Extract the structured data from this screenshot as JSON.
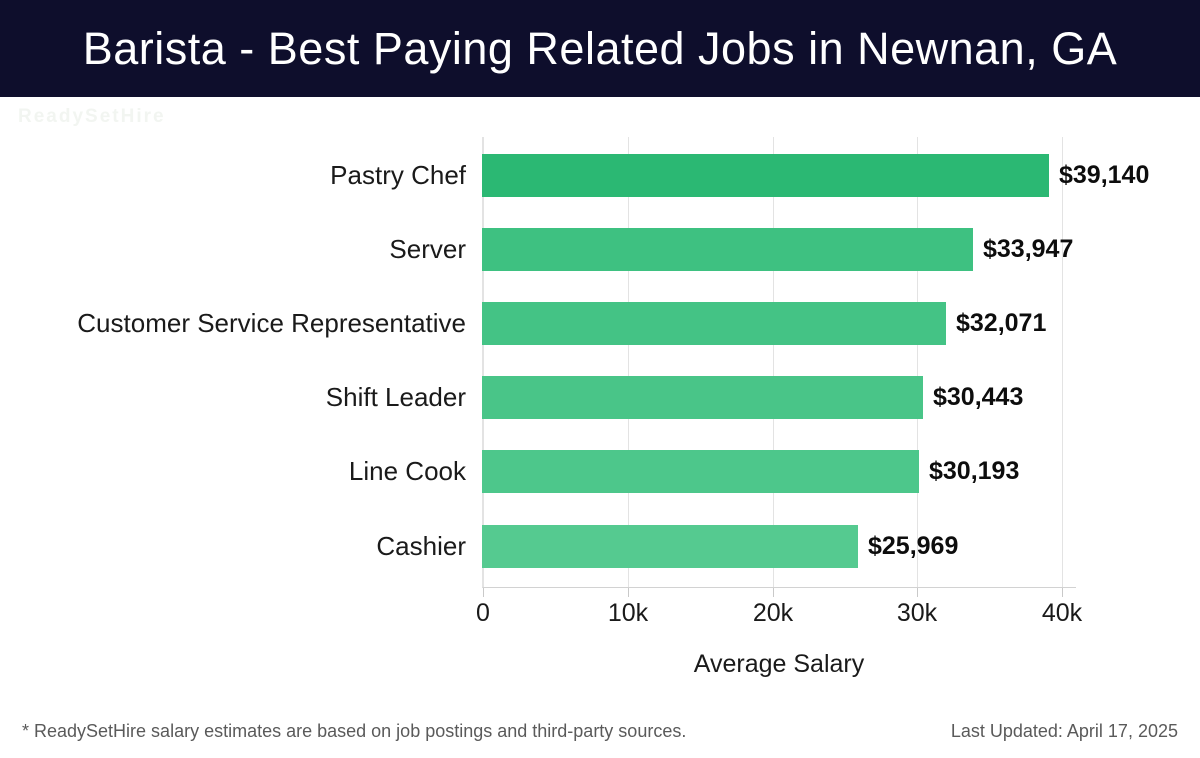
{
  "header": {
    "title": "Barista - Best Paying Related Jobs in Newnan, GA",
    "bg_color": "#0e0e2c",
    "text_color": "#ffffff"
  },
  "watermark": {
    "text": "ReadySetHire"
  },
  "chart_data": {
    "type": "bar",
    "orientation": "horizontal",
    "title": "Barista - Best Paying Related Jobs in Newnan, GA",
    "categories": [
      "Pastry Chef",
      "Server",
      "Customer Service Representative",
      "Shift Leader",
      "Line Cook",
      "Cashier"
    ],
    "values": [
      39140,
      33947,
      32071,
      30443,
      30193,
      25969
    ],
    "value_labels": [
      "$39,140",
      "$33,947",
      "$32,071",
      "$30,443",
      "$30,193",
      "$25,969"
    ],
    "bar_colors": [
      "#2bb873",
      "#3ec181",
      "#44c385",
      "#49c588",
      "#4dc78b",
      "#55ca90"
    ],
    "xlabel": "Average Salary",
    "ylabel": "",
    "xlim": [
      0,
      40000
    ],
    "xticks": [
      {
        "value": 0,
        "label": "0"
      },
      {
        "value": 10000,
        "label": "10k"
      },
      {
        "value": 20000,
        "label": "20k"
      },
      {
        "value": 30000,
        "label": "30k"
      },
      {
        "value": 40000,
        "label": "40k"
      }
    ],
    "grid": "vertical",
    "grid_color": "#e3e3e3",
    "legend": "none"
  },
  "footer": {
    "disclaimer": "* ReadySetHire salary estimates are based on job postings and third-party sources.",
    "last_updated": "Last Updated: April 17, 2025"
  }
}
